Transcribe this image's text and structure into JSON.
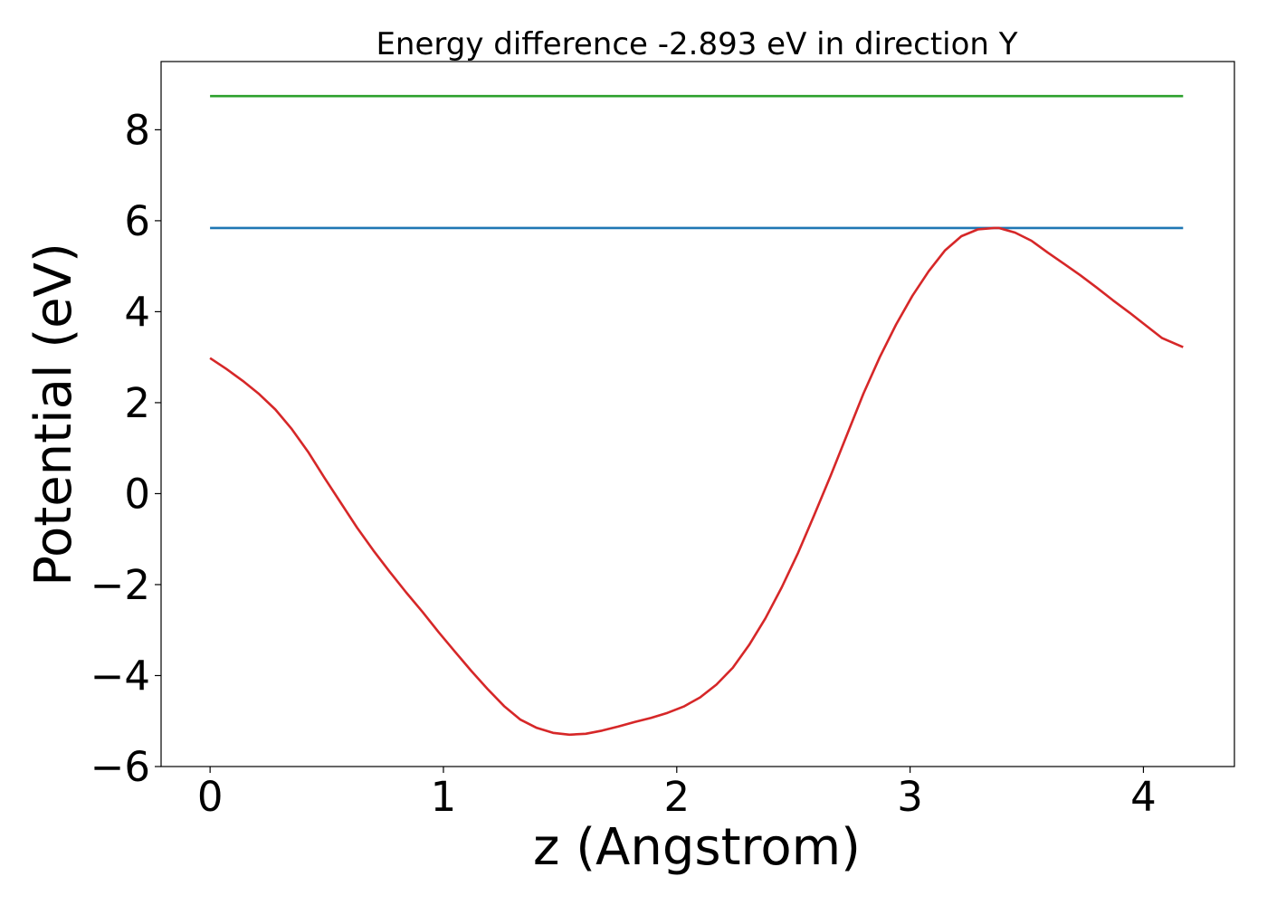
{
  "chart_data": {
    "type": "line",
    "title": "Energy difference -2.893 eV in direction Y",
    "xlabel": "z (Angstrom)",
    "ylabel": "Potential (eV)",
    "xlim": [
      -0.21,
      4.39
    ],
    "ylim": [
      -6.0,
      9.5
    ],
    "xticks": [
      0,
      1,
      2,
      3,
      4
    ],
    "yticks": [
      -6,
      -4,
      -2,
      0,
      2,
      4,
      6,
      8
    ],
    "xtick_labels": [
      "0",
      "1",
      "2",
      "3",
      "4"
    ],
    "ytick_labels": [
      "−6",
      "−4",
      "−2",
      "0",
      "2",
      "4",
      "6",
      "8"
    ],
    "grid": false,
    "series": [
      {
        "color": "#2ca02c",
        "x": [
          0,
          4.17
        ],
        "y": [
          8.74,
          8.74
        ]
      },
      {
        "color": "#1f77b4",
        "x": [
          0,
          4.17
        ],
        "y": [
          5.84,
          5.84
        ]
      },
      {
        "color": "#d62728",
        "x": [
          0,
          0.07,
          0.14,
          0.21,
          0.28,
          0.35,
          0.42,
          0.49,
          0.56,
          0.63,
          0.7,
          0.77,
          0.84,
          0.91,
          0.98,
          1.05,
          1.12,
          1.19,
          1.26,
          1.33,
          1.4,
          1.47,
          1.54,
          1.61,
          1.68,
          1.75,
          1.82,
          1.89,
          1.96,
          2.03,
          2.1,
          2.17,
          2.24,
          2.31,
          2.38,
          2.45,
          2.52,
          2.59,
          2.66,
          2.73,
          2.8,
          2.87,
          2.94,
          3.01,
          3.08,
          3.15,
          3.22,
          3.29,
          3.36,
          3.38,
          3.45,
          3.52,
          3.59,
          3.66,
          3.73,
          3.8,
          3.87,
          3.94,
          4.01,
          4.08,
          4.17
        ],
        "y": [
          2.98,
          2.74,
          2.48,
          2.19,
          1.85,
          1.42,
          0.92,
          0.35,
          -0.2,
          -0.75,
          -1.25,
          -1.72,
          -2.17,
          -2.6,
          -3.05,
          -3.48,
          -3.9,
          -4.3,
          -4.67,
          -4.97,
          -5.15,
          -5.26,
          -5.3,
          -5.28,
          -5.21,
          -5.12,
          -5.02,
          -4.93,
          -4.82,
          -4.68,
          -4.48,
          -4.2,
          -3.83,
          -3.33,
          -2.74,
          -2.06,
          -1.3,
          -0.46,
          0.4,
          1.3,
          2.2,
          3.0,
          3.72,
          4.35,
          4.89,
          5.35,
          5.66,
          5.81,
          5.84,
          5.84,
          5.74,
          5.56,
          5.3,
          5.05,
          4.8,
          4.53,
          4.25,
          3.98,
          3.7,
          3.42,
          3.22
        ]
      }
    ]
  }
}
